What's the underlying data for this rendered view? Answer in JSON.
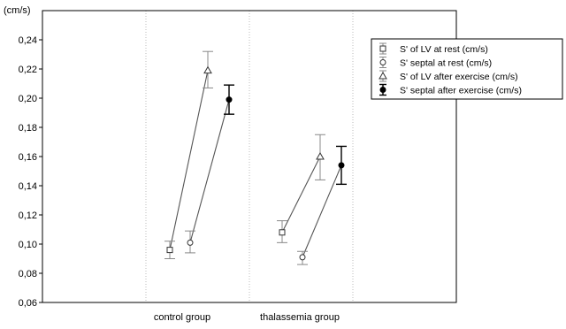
{
  "chart_data": {
    "type": "line",
    "ylabel": "(cm/s)",
    "xlabel": "",
    "categories": [
      "control group",
      "thalassemia group"
    ],
    "ylim": [
      0.06,
      0.26
    ],
    "yticks": [
      0.06,
      0.08,
      0.1,
      0.12,
      0.14,
      0.16,
      0.18,
      0.2,
      0.22,
      0.24
    ],
    "ytick_labels": [
      "0,06",
      "0,08",
      "0,10",
      "0,12",
      "0,14",
      "0,16",
      "0,18",
      "0,20",
      "0,22",
      "0,24"
    ],
    "grid": true,
    "legend_position": "top-right",
    "pairs": [
      {
        "name": "LV",
        "rest_series": 0,
        "exercise_series": 2
      },
      {
        "name": "septal",
        "rest_series": 1,
        "exercise_series": 3
      }
    ],
    "series": [
      {
        "name": "S' of LV at rest (cm/s)",
        "marker": "square",
        "color": "#888888",
        "values": [
          0.096,
          0.108
        ],
        "error_low": [
          0.09,
          0.101
        ],
        "error_high": [
          0.102,
          0.116
        ]
      },
      {
        "name": "S' septal at rest (cm/s)",
        "marker": "circle",
        "color": "#888888",
        "values": [
          0.101,
          0.091
        ],
        "error_low": [
          0.094,
          0.086
        ],
        "error_high": [
          0.109,
          0.095
        ]
      },
      {
        "name": "S' of LV after exercise (cm/s)",
        "marker": "triangle",
        "color": "#888888",
        "values": [
          0.219,
          0.16
        ],
        "error_low": [
          0.207,
          0.144
        ],
        "error_high": [
          0.232,
          0.175
        ]
      },
      {
        "name": "S' septal after exercise (cm/s)",
        "marker": "filled-circle",
        "color": "#000000",
        "values": [
          0.199,
          0.154
        ],
        "error_low": [
          0.189,
          0.141
        ],
        "error_high": [
          0.209,
          0.167
        ]
      }
    ]
  }
}
